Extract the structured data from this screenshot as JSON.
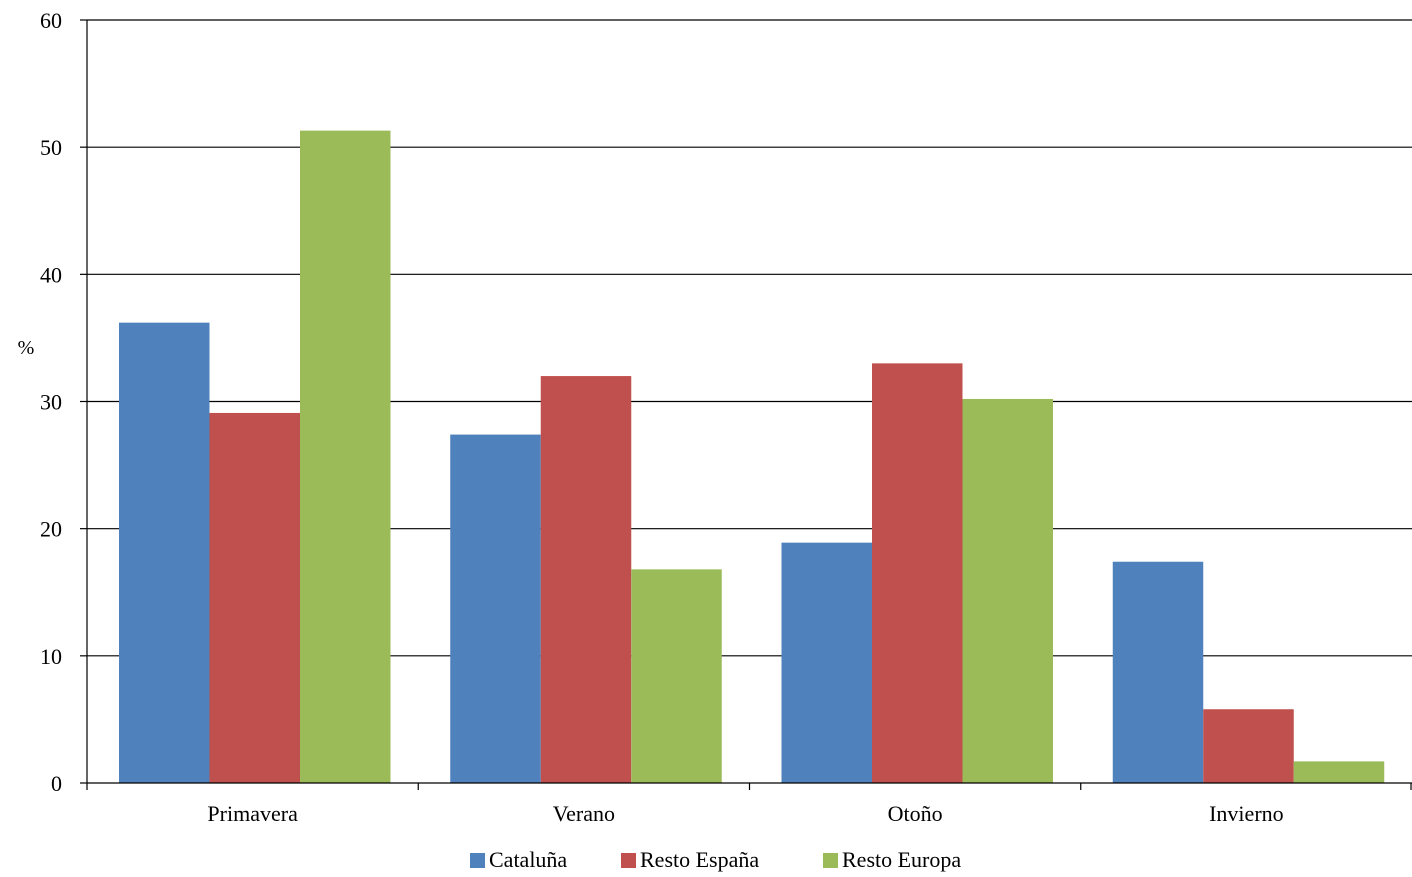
{
  "chart_data": {
    "type": "bar",
    "categories": [
      "Primavera",
      "Verano",
      "Otoño",
      "Invierno"
    ],
    "series": [
      {
        "name": "Cataluña",
        "color": "#4f81bd",
        "values": [
          36.2,
          27.4,
          18.9,
          17.4
        ]
      },
      {
        "name": "Resto España",
        "color": "#c0504d",
        "values": [
          29.1,
          32.0,
          33.0,
          5.8
        ]
      },
      {
        "name": "Resto Europa",
        "color": "#9bbb59",
        "values": [
          51.3,
          16.8,
          30.2,
          1.7
        ]
      }
    ],
    "ylabel": "%",
    "ylim": [
      0,
      60
    ],
    "yticks": [
      0,
      10,
      20,
      30,
      40,
      50,
      60
    ],
    "grid": true,
    "legend_position": "bottom"
  }
}
